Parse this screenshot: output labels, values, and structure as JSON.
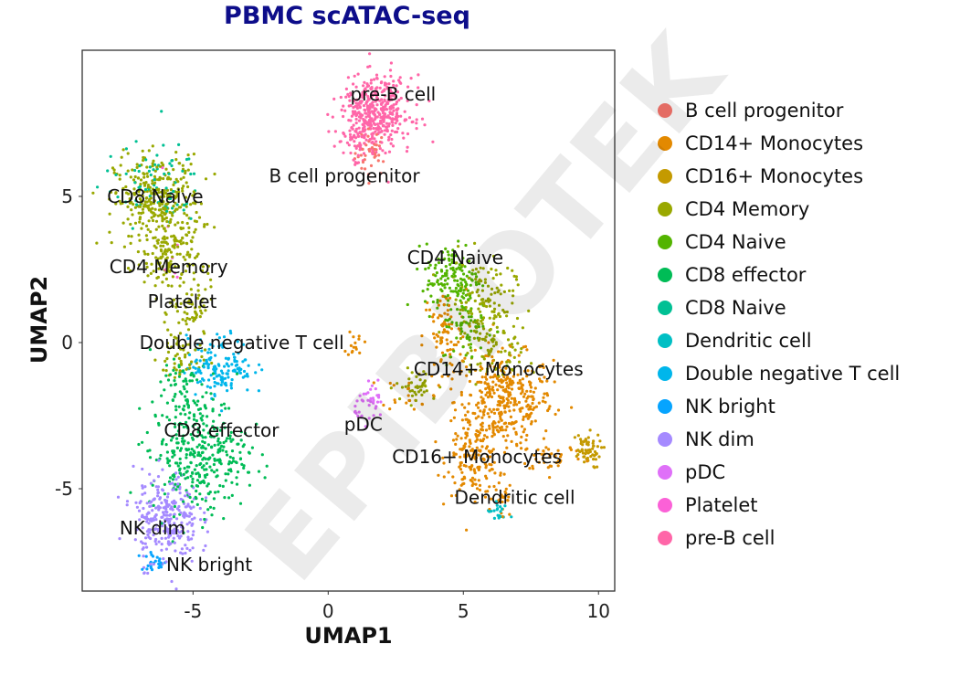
{
  "chart_data": {
    "type": "scatter",
    "title": "PBMC scATAC-seq",
    "xlabel": "UMAP1",
    "ylabel": "UMAP2",
    "xlim": [
      -9.1,
      10.6
    ],
    "ylim": [
      -8.5,
      10.0
    ],
    "xticks": [
      -5,
      0,
      5,
      10
    ],
    "yticks": [
      -5,
      0,
      5
    ],
    "grid": false,
    "legend_position": "right",
    "watermark": "EPIBIOTEK",
    "series": [
      {
        "name": "B cell progenitor",
        "color": "#F8766D",
        "blobs": [
          [
            1.6,
            6.5,
            0.3,
            0.4,
            40
          ]
        ],
        "label": [
          0.6,
          5.7
        ]
      },
      {
        "name": "CD14+ Monocytes",
        "color": "#E38900",
        "blobs": [
          [
            6.5,
            -2.0,
            0.9,
            0.8,
            360
          ],
          [
            5.4,
            -4.0,
            0.5,
            0.6,
            150
          ],
          [
            4.3,
            0.2,
            0.4,
            0.8,
            80
          ],
          [
            8.3,
            -3.9,
            0.6,
            0.25,
            40
          ],
          [
            6.4,
            -5.4,
            0.2,
            0.5,
            25
          ],
          [
            1.0,
            0.0,
            0.15,
            0.25,
            15
          ],
          [
            3.0,
            -1.7,
            0.5,
            0.3,
            20
          ]
        ],
        "label": [
          6.3,
          -0.9
        ]
      },
      {
        "name": "CD16+ Monocytes",
        "color": "#C49A00",
        "blobs": [
          [
            9.5,
            -3.7,
            0.3,
            0.3,
            60
          ]
        ],
        "label": [
          5.5,
          -3.9
        ]
      },
      {
        "name": "CD4 Memory",
        "color": "#99A800",
        "blobs": [
          [
            -6.3,
            4.8,
            0.8,
            0.8,
            350
          ],
          [
            -5.8,
            2.8,
            0.5,
            0.6,
            120
          ],
          [
            -5.0,
            1.0,
            0.4,
            0.5,
            60
          ],
          [
            -5.5,
            -0.5,
            0.4,
            0.5,
            50
          ],
          [
            5.7,
            1.3,
            0.6,
            0.8,
            150
          ],
          [
            6.2,
            -0.5,
            0.5,
            0.5,
            60
          ],
          [
            3.3,
            -1.5,
            0.4,
            0.3,
            40
          ]
        ],
        "label": [
          -5.9,
          2.6
        ]
      },
      {
        "name": "CD4 Naive",
        "color": "#53B400",
        "blobs": [
          [
            4.6,
            2.2,
            0.5,
            0.6,
            150
          ],
          [
            5.2,
            0.5,
            0.5,
            0.6,
            60
          ]
        ],
        "label": [
          4.7,
          2.9
        ]
      },
      {
        "name": "CD8 effector",
        "color": "#00BC56",
        "blobs": [
          [
            -4.8,
            -3.8,
            0.9,
            1.0,
            350
          ],
          [
            -5.5,
            -1.5,
            0.5,
            0.6,
            60
          ]
        ],
        "label": [
          -3.95,
          -3.0
        ]
      },
      {
        "name": "CD8 Naive",
        "color": "#00C094",
        "blobs": [
          [
            -6.5,
            5.4,
            0.9,
            0.7,
            70
          ]
        ],
        "label": [
          -6.4,
          5.0
        ]
      },
      {
        "name": "Dendritic cell",
        "color": "#00BFC4",
        "blobs": [
          [
            6.3,
            -5.8,
            0.2,
            0.2,
            20
          ]
        ],
        "label": [
          6.9,
          -5.3
        ]
      },
      {
        "name": "Double negative T cell",
        "color": "#00B6EB",
        "blobs": [
          [
            -4.0,
            -0.8,
            0.6,
            0.5,
            150
          ]
        ],
        "label": [
          -3.2,
          0.0
        ]
      },
      {
        "name": "NK bright",
        "color": "#06A4FF",
        "blobs": [
          [
            -6.4,
            -7.5,
            0.3,
            0.15,
            25
          ]
        ],
        "label": [
          -4.4,
          -7.6
        ]
      },
      {
        "name": "NK dim",
        "color": "#A58AFF",
        "blobs": [
          [
            -6.0,
            -6.0,
            0.6,
            0.8,
            280
          ]
        ],
        "label": [
          -6.5,
          -6.35
        ]
      },
      {
        "name": "pDC",
        "color": "#DF70F8",
        "blobs": [
          [
            1.6,
            -2.1,
            0.3,
            0.3,
            40
          ]
        ],
        "label": [
          1.3,
          -2.8
        ]
      },
      {
        "name": "Platelet",
        "color": "#FB61D7",
        "blobs": [
          [
            -5.8,
            3.5,
            0.5,
            1.0,
            8
          ]
        ],
        "label": [
          -5.4,
          1.4
        ]
      },
      {
        "name": "pre-B cell",
        "color": "#FF66A8",
        "blobs": [
          [
            1.8,
            7.9,
            0.65,
            0.6,
            380
          ],
          [
            1.2,
            7.0,
            0.4,
            0.5,
            80
          ]
        ],
        "label": [
          2.4,
          8.5
        ]
      }
    ]
  }
}
